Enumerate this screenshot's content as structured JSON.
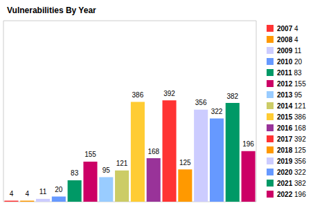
{
  "chart_data": {
    "type": "bar",
    "title": "Vulnerabilities By Year",
    "categories": [
      "2007",
      "2008",
      "2009",
      "2010",
      "2011",
      "2012",
      "2013",
      "2014",
      "2015",
      "2016",
      "2017",
      "2018",
      "2019",
      "2020",
      "2021",
      "2022"
    ],
    "values": [
      4,
      4,
      11,
      20,
      83,
      155,
      95,
      121,
      386,
      168,
      392,
      125,
      356,
      322,
      382,
      196
    ],
    "colors": [
      "#ff3333",
      "#ff9900",
      "#ccccff",
      "#6699ff",
      "#009966",
      "#cc0066",
      "#99ccff",
      "#cccc66",
      "#ffcc33",
      "#993399",
      "#ff3333",
      "#ff9900",
      "#ccccff",
      "#6699ff",
      "#009966",
      "#cc0066"
    ],
    "ylim": [
      0,
      700
    ],
    "grid": false,
    "legend": "right",
    "data_labels": true,
    "tick_labels": false
  }
}
